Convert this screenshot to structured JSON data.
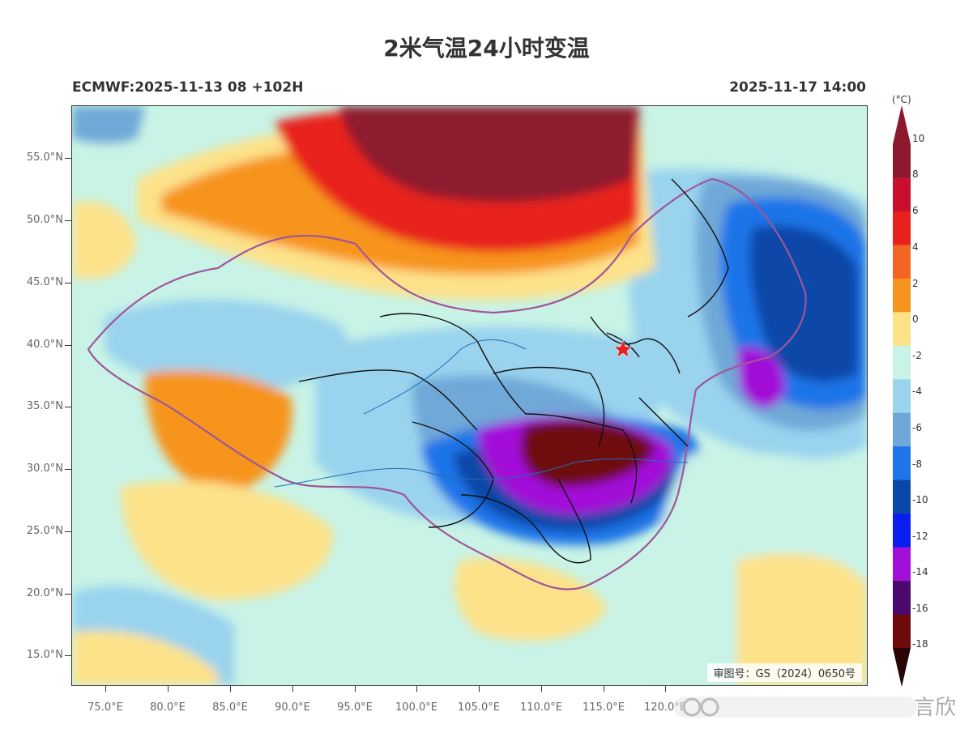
{
  "title": "2米气温24小时变温",
  "subtitle_left": "ECMWF:2025-11-13 08 +102H",
  "subtitle_right": "2025-11-17 14:00",
  "map": {
    "lat_labels": [
      "55.0°N",
      "50.0°N",
      "45.0°N",
      "40.0°N",
      "35.0°N",
      "30.0°N",
      "25.0°N",
      "20.0°N",
      "15.0°N"
    ],
    "lon_labels": [
      "75.0°E",
      "80.0°E",
      "85.0°E",
      "90.0°E",
      "95.0°E",
      "100.0°E",
      "105.0°E",
      "110.0°E",
      "115.0°E",
      "120.0°E"
    ],
    "review_number": "审图号：GS（2024）0650号",
    "capital_marker": "red-star-icon"
  },
  "colorbar": {
    "unit": "(°C)",
    "levels": [
      "10",
      "8",
      "6",
      "4",
      "2",
      "0",
      "-2",
      "-4",
      "-6",
      "-8",
      "-10",
      "-12",
      "-14",
      "-16",
      "-18"
    ],
    "colors": [
      "#8c1a2e",
      "#c8102e",
      "#e8201e",
      "#f26522",
      "#f7941d",
      "#fde28a",
      "#c8f3e6",
      "#9ad3ee",
      "#6fa8d8",
      "#1e74e8",
      "#0a47a8",
      "#0a1ef0",
      "#a20fd8",
      "#4b0a6e",
      "#6e0a0a"
    ]
  },
  "watermark": "言欣"
}
